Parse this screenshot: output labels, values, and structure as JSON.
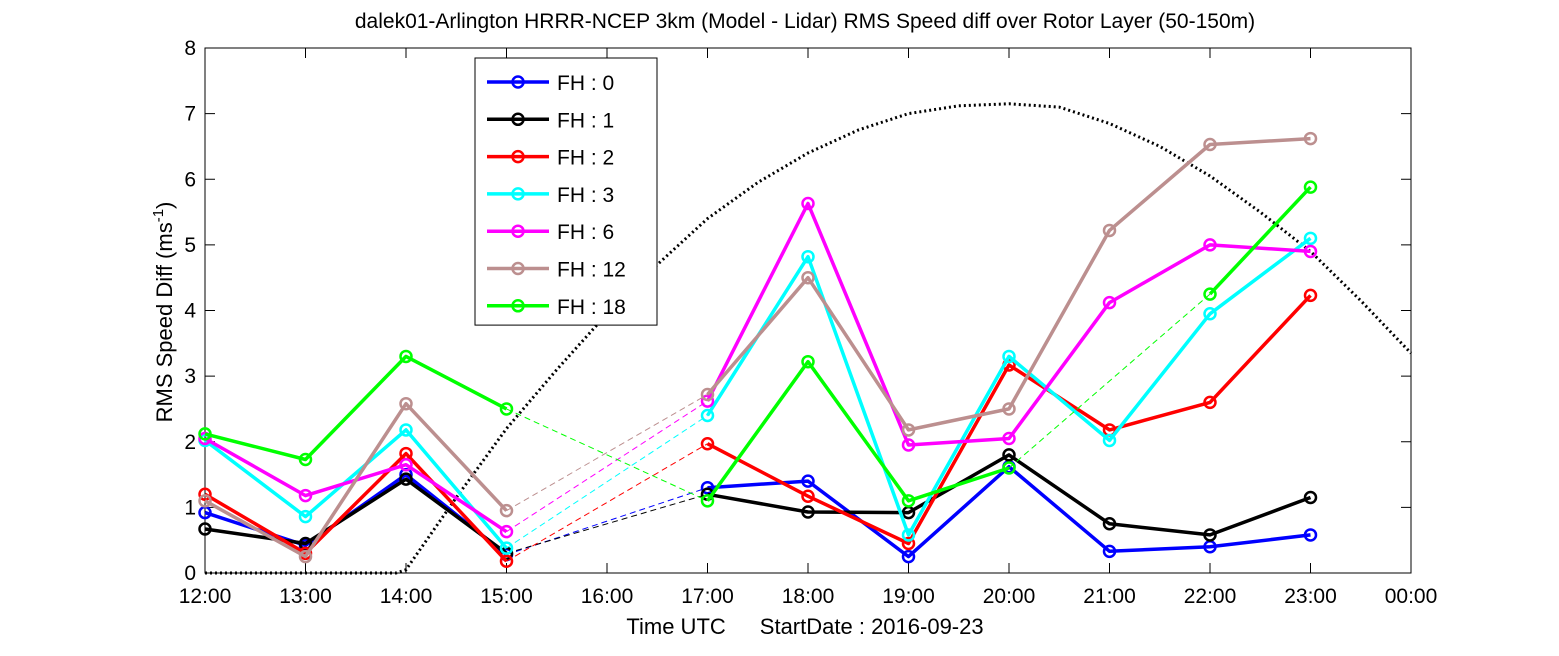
{
  "chart_data": {
    "type": "line",
    "title": "dalek01-Arlington HRRR-NCEP 3km (Model - Lidar) RMS Speed diff over Rotor Layer (50-150m)",
    "xlabel": "Time UTC",
    "xlabel_extra_prefix": "StartDate : ",
    "start_date": "2016-09-23",
    "ylabel": "RMS Speed Diff (ms",
    "ylabel_sup": "-1",
    "ylabel_close": ")",
    "xlim": [
      12,
      24
    ],
    "ylim": [
      0,
      8
    ],
    "x_ticks": [
      12,
      13,
      14,
      15,
      16,
      17,
      18,
      19,
      20,
      21,
      22,
      23,
      24
    ],
    "x_tick_labels": [
      "12:00",
      "13:00",
      "14:00",
      "15:00",
      "16:00",
      "17:00",
      "18:00",
      "19:00",
      "20:00",
      "21:00",
      "22:00",
      "23:00",
      "00:00"
    ],
    "y_ticks": [
      0,
      1,
      2,
      3,
      4,
      5,
      6,
      7,
      8
    ],
    "y_tick_labels": [
      "0",
      "1",
      "2",
      "3",
      "4",
      "5",
      "6",
      "7",
      "8"
    ],
    "grid": false,
    "legend_position": "upper-left",
    "x": [
      12,
      13,
      14,
      15,
      17,
      18,
      19,
      20,
      21,
      22,
      23
    ],
    "series": [
      {
        "name": "FH : 0",
        "color": "#0000ff",
        "values": [
          0.92,
          0.42,
          1.5,
          0.28,
          1.3,
          1.4,
          0.25,
          1.62,
          0.33,
          0.4,
          0.58
        ]
      },
      {
        "name": "FH : 1",
        "color": "#000000",
        "values": [
          0.67,
          0.45,
          1.43,
          0.3,
          1.2,
          0.93,
          0.92,
          1.8,
          0.75,
          0.58,
          1.15
        ]
      },
      {
        "name": "FH : 2",
        "color": "#ff0000",
        "values": [
          1.2,
          0.3,
          1.82,
          0.18,
          1.97,
          1.17,
          0.45,
          3.17,
          2.18,
          2.6,
          4.23
        ]
      },
      {
        "name": "FH : 3",
        "color": "#00ffff",
        "values": [
          2.02,
          0.86,
          2.18,
          0.38,
          2.4,
          4.82,
          0.58,
          3.3,
          2.02,
          3.95,
          5.1
        ]
      },
      {
        "name": "FH : 6",
        "color": "#ff00ff",
        "values": [
          2.05,
          1.18,
          1.65,
          0.63,
          2.62,
          5.63,
          1.95,
          2.05,
          4.12,
          5.0,
          4.9
        ]
      },
      {
        "name": "FH : 12",
        "color": "#bc8f8f",
        "values": [
          1.1,
          0.25,
          2.58,
          0.95,
          2.72,
          4.5,
          2.18,
          2.5,
          5.22,
          6.53,
          6.62
        ]
      },
      {
        "name": "FH : 18",
        "color": "#00ff00",
        "values": [
          2.12,
          1.73,
          3.3,
          2.5,
          1.1,
          3.22,
          1.1,
          1.6,
          null,
          4.25,
          5.88
        ]
      }
    ],
    "reference_curve": {
      "style": "dotted",
      "color": "#000000",
      "x": [
        12,
        13.9,
        14,
        14.5,
        15,
        15.5,
        16,
        16.5,
        17,
        17.5,
        18,
        18.5,
        19,
        19.5,
        20,
        20.5,
        21,
        21.5,
        22,
        22.5,
        23,
        23.5,
        24
      ],
      "y": [
        0,
        0,
        0.05,
        1.15,
        2.2,
        3.1,
        3.95,
        4.7,
        5.4,
        5.95,
        6.4,
        6.75,
        7.0,
        7.12,
        7.15,
        7.1,
        6.85,
        6.5,
        6.05,
        5.5,
        4.9,
        4.15,
        3.35
      ]
    }
  }
}
